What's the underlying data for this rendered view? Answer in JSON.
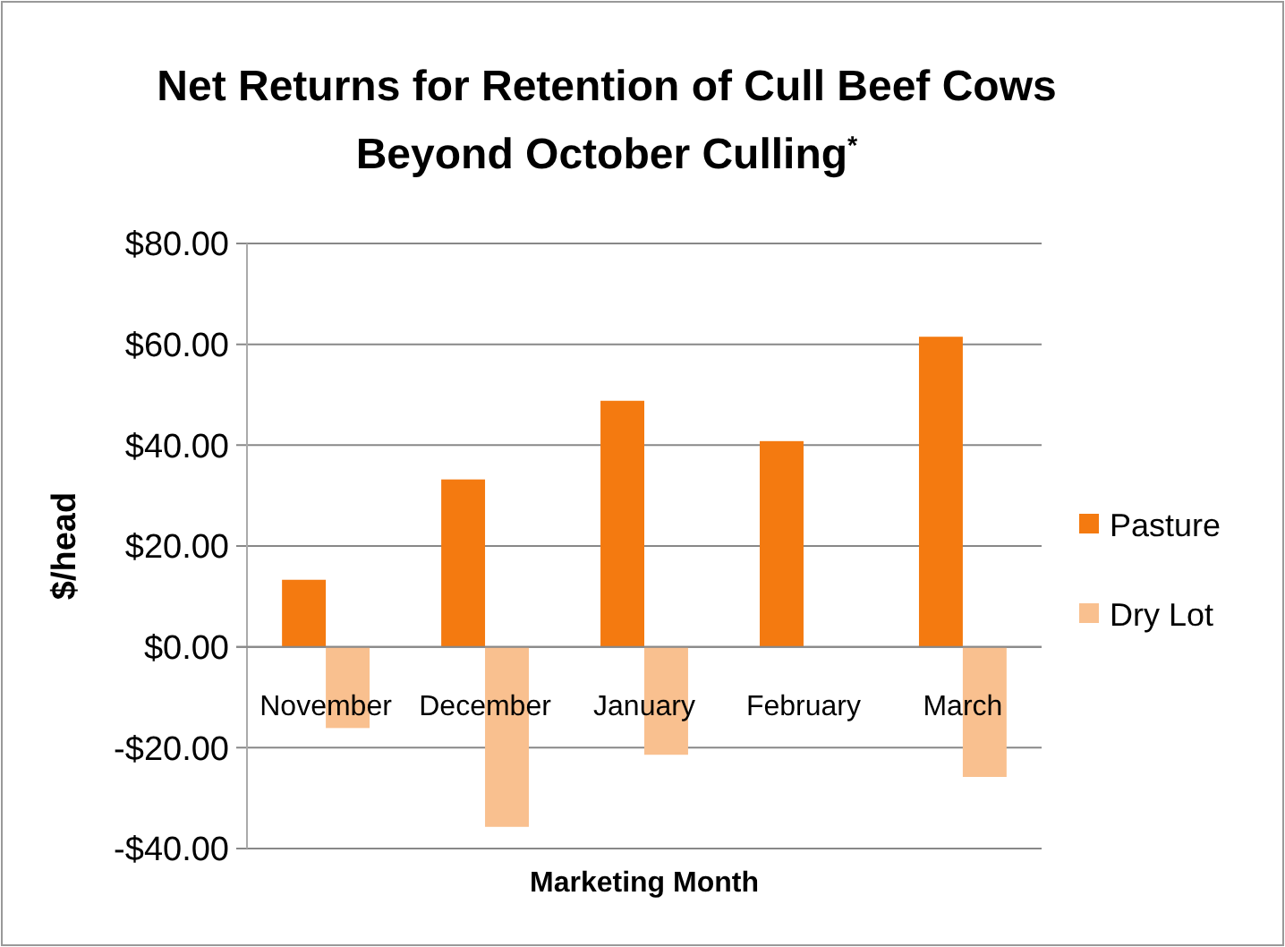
{
  "chart_data": {
    "type": "bar",
    "title": "Net Returns for Retention of Cull Beef Cows Beyond October Culling$^{*}$",
    "xlabel": "Marketing Month",
    "ylabel": "$/head",
    "categories": [
      "November",
      "December",
      "January",
      "February",
      "March"
    ],
    "series": [
      {
        "name": "Pasture",
        "color": "#f47a10",
        "values": [
          13.3,
          33.2,
          48.8,
          40.8,
          61.5
        ]
      },
      {
        "name": "Dry Lot",
        "color": "#f9c08f",
        "values": [
          -16.1,
          -35.7,
          -21.4,
          0,
          -25.8
        ]
      }
    ],
    "ylim": [
      -40,
      80
    ],
    "yticks": [
      {
        "value": -40,
        "label": "-$40.00"
      },
      {
        "value": -20,
        "label": "-$20.00"
      },
      {
        "value": 0,
        "label": "$0.00"
      },
      {
        "value": 20,
        "label": "$20.00"
      },
      {
        "value": 40,
        "label": "$40.00"
      },
      {
        "value": 60,
        "label": "$60.00"
      },
      {
        "value": 80,
        "label": "$80.00"
      }
    ],
    "grid": "y",
    "legend": "right"
  }
}
